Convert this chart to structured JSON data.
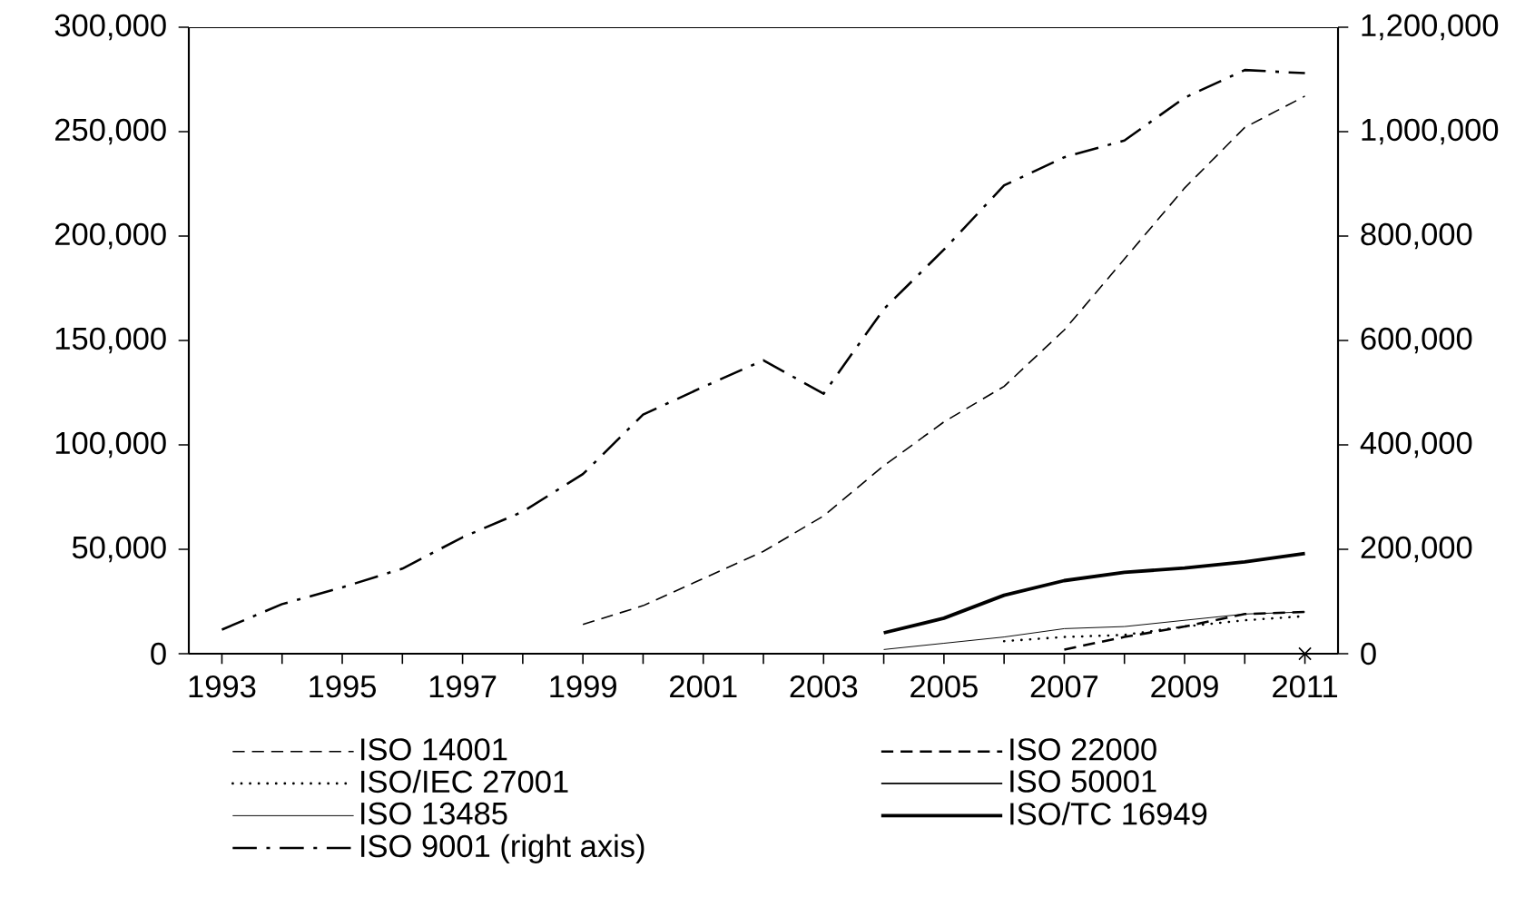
{
  "chart_data": {
    "type": "line",
    "x": [
      1993,
      1994,
      1995,
      1996,
      1997,
      1998,
      1999,
      2000,
      2001,
      2002,
      2003,
      2004,
      2005,
      2006,
      2007,
      2008,
      2009,
      2010,
      2011
    ],
    "series": [
      {
        "name": "ISO 14001",
        "color": "#000000",
        "line_style": "dashed",
        "values": [
          null,
          null,
          null,
          null,
          null,
          null,
          14000,
          23000,
          36000,
          49000,
          66000,
          90000,
          111000,
          128000,
          155000,
          189000,
          223000,
          252000,
          267000
        ]
      },
      {
        "name": "ISO 22000",
        "color": "#000000",
        "line_style": "dashed",
        "values": [
          null,
          null,
          null,
          null,
          null,
          null,
          null,
          null,
          null,
          null,
          null,
          null,
          null,
          null,
          2000,
          8000,
          13000,
          19000,
          20000
        ]
      },
      {
        "name": "ISO/IEC 27001",
        "color": "#000000",
        "line_style": "dotted",
        "values": [
          null,
          null,
          null,
          null,
          null,
          null,
          null,
          null,
          null,
          null,
          null,
          null,
          null,
          6000,
          8000,
          9000,
          13000,
          16000,
          18000
        ]
      },
      {
        "name": "ISO 50001",
        "color": "#000000",
        "line_style": "solid",
        "marker": "cross",
        "values": [
          null,
          null,
          null,
          null,
          null,
          null,
          null,
          null,
          null,
          null,
          null,
          null,
          null,
          null,
          null,
          null,
          null,
          null,
          0
        ]
      },
      {
        "name": "ISO 13485",
        "color": "#000000",
        "line_style": "solid",
        "values": [
          null,
          null,
          null,
          null,
          null,
          null,
          null,
          null,
          null,
          null,
          null,
          2000,
          5000,
          8000,
          12000,
          13000,
          16000,
          19000,
          20000
        ]
      },
      {
        "name": "ISO/TC 16949",
        "color": "#000000",
        "line_style": "solid",
        "values": [
          null,
          null,
          null,
          null,
          null,
          null,
          null,
          null,
          null,
          null,
          null,
          10000,
          17000,
          28000,
          35000,
          39000,
          41000,
          44000,
          48000
        ]
      },
      {
        "name": "ISO 9001 (right axis)",
        "color": "#000000",
        "line_style": "dashdotted",
        "axis": "y2",
        "values": [
          46000,
          95000,
          127000,
          163000,
          223000,
          272000,
          344000,
          458000,
          511000,
          562000,
          498000,
          660000,
          774000,
          897000,
          951000,
          983000,
          1065000,
          1118000,
          1112000
        ]
      }
    ],
    "xlim": [
      1992.45,
      2011.55
    ],
    "xticks": [
      1993,
      {
        "value": 1994,
        "label": null
      },
      1995,
      {
        "value": 1996,
        "label": null
      },
      1997,
      {
        "value": 1998,
        "label": null
      },
      1999,
      {
        "value": 2000,
        "label": null
      },
      2001,
      {
        "value": 2002,
        "label": null
      },
      2003,
      {
        "value": 2004,
        "label": null
      },
      2005,
      {
        "value": 2006,
        "label": null
      },
      2007,
      {
        "value": 2008,
        "label": null
      },
      2009,
      {
        "value": 2010,
        "label": null
      },
      2011
    ],
    "ylim": [
      0,
      300000
    ],
    "yticks": [
      0,
      {
        "value": 50000,
        "label": "50,000"
      },
      {
        "value": 100000,
        "label": "100,000"
      },
      {
        "value": 150000,
        "label": "150,000"
      },
      {
        "value": 200000,
        "label": "200,000"
      },
      {
        "value": 250000,
        "label": "250,000"
      },
      {
        "value": 300000,
        "label": "300,000"
      }
    ],
    "y2lim": [
      0,
      1200000
    ],
    "y2ticks": [
      0,
      {
        "value": 200000,
        "label": "200,000"
      },
      {
        "value": 400000,
        "label": "400,000"
      },
      {
        "value": 600000,
        "label": "600,000"
      },
      {
        "value": 800000,
        "label": "800,000"
      },
      {
        "value": 1000000,
        "label": "1,000,000"
      },
      {
        "value": 1200000,
        "label": "1,200,000"
      }
    ],
    "legend": "bottom",
    "grid": false,
    "marker": "none"
  }
}
